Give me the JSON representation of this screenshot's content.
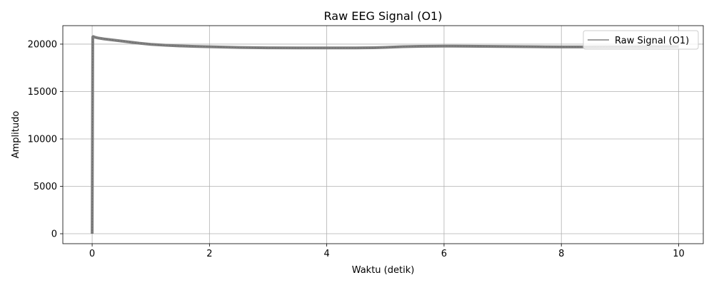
{
  "chart_data": {
    "type": "line",
    "title": "Raw EEG Signal (O1)",
    "xlabel": "Waktu (detik)",
    "ylabel": "Amplitudo",
    "xlim": [
      -0.5,
      10.42
    ],
    "ylim": [
      -1050,
      21950
    ],
    "xticks": [
      0,
      2,
      4,
      6,
      8,
      10
    ],
    "yticks": [
      0,
      5000,
      10000,
      15000,
      20000
    ],
    "xtick_labels": [
      "0",
      "2",
      "4",
      "6",
      "8",
      "10"
    ],
    "ytick_labels": [
      "0",
      "5000",
      "10000",
      "15000",
      "20000"
    ],
    "grid": true,
    "legend": "top-right",
    "colors": {
      "series": "#808080",
      "grid": "#b0b0b0",
      "axes": "#000000",
      "legend_border": "#cccccc"
    },
    "series": [
      {
        "name": "Raw Signal (O1)",
        "x": [
          0,
          0.01,
          0.02,
          0.05,
          0.1,
          0.2,
          0.4,
          0.6,
          0.8,
          1.0,
          1.25,
          1.5,
          1.75,
          2.0,
          2.5,
          3.0,
          3.5,
          4.0,
          4.5,
          4.8,
          5.0,
          5.3,
          5.6,
          6.0,
          6.4,
          6.8,
          7.2,
          7.6,
          8.0,
          8.4,
          8.8,
          9.2,
          9.6,
          10.0
        ],
        "y": [
          0,
          20750,
          20800,
          20720,
          20650,
          20550,
          20400,
          20250,
          20100,
          19980,
          19880,
          19810,
          19760,
          19720,
          19650,
          19610,
          19600,
          19600,
          19600,
          19620,
          19660,
          19730,
          19770,
          19790,
          19780,
          19760,
          19740,
          19720,
          19700,
          19700,
          19710,
          19720,
          19730,
          19740
        ]
      }
    ]
  }
}
